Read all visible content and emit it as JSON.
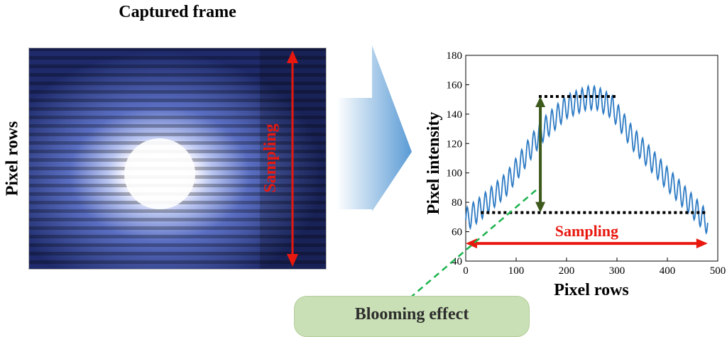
{
  "frame_title": "Captured frame",
  "left_axis_label": "Pixel rows",
  "frame_sampling_label": "Sampling",
  "bubble_label": "Blooming effect",
  "colors": {
    "sampling_arrow": "#e8180f",
    "blooming_arrow": "#3d5a1c",
    "curve": "#2e7bc4",
    "bubble_fill": "#c9dfb5",
    "dashed_line": "#1db34f",
    "big_arrow": "#5a9bd5"
  },
  "chart_data": {
    "type": "line",
    "xlabel": "Pixel rows",
    "ylabel": "Pixel intensity",
    "xlim": [
      0,
      500
    ],
    "ylim": [
      40,
      180
    ],
    "xticks": [
      0,
      100,
      200,
      300,
      400,
      500
    ],
    "yticks": [
      40,
      60,
      80,
      100,
      120,
      140,
      160,
      180
    ],
    "sampling_label": "Sampling",
    "curve": {
      "envelope_x": [
        0,
        30,
        80,
        150,
        200,
        240,
        260,
        290,
        330,
        400,
        480
      ],
      "envelope_y": [
        68,
        76,
        92,
        128,
        145,
        151,
        151,
        145,
        124,
        96,
        66
      ],
      "stripe_period": 12,
      "stripe_amplitude": 8
    },
    "upper_dotted_level": 152,
    "upper_dotted_range": [
      145,
      300
    ],
    "lower_dotted_level": 73,
    "lower_dotted_range": [
      30,
      475
    ],
    "blooming_arrow_x": 148,
    "blooming_arrow_y_range": [
      73,
      152
    ],
    "sampling_arrow_x_range": [
      0,
      480
    ],
    "sampling_arrow_y": 52
  }
}
